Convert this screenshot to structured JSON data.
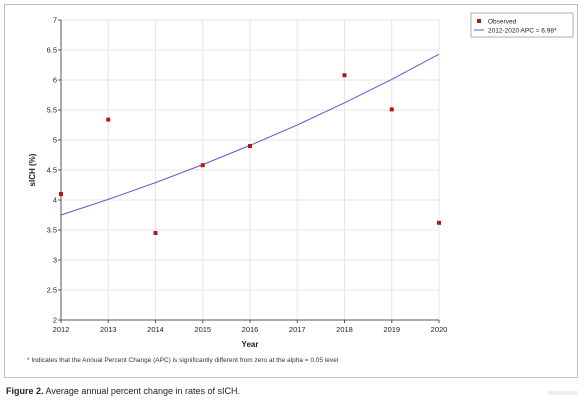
{
  "chart_data": {
    "type": "scatter",
    "title": "",
    "xlabel": "Year",
    "ylabel": "sICH (%)",
    "xlim": [
      2012,
      2020
    ],
    "ylim": [
      2,
      7
    ],
    "xticks": [
      "2012",
      "2013",
      "2014",
      "2015",
      "2016",
      "2017",
      "2018",
      "2019",
      "2020"
    ],
    "yticks": [
      "2",
      "2.5",
      "3",
      "3.5",
      "4",
      "4.5",
      "5",
      "5.5",
      "6",
      "6.5",
      "7"
    ],
    "grid": true,
    "legend_position": "top-right",
    "series": [
      {
        "name": "Observed",
        "kind": "points",
        "color": "#b01818",
        "x": [
          2012,
          2013,
          2014,
          2015,
          2016,
          2018,
          2019,
          2020
        ],
        "values": [
          4.1,
          5.34,
          3.45,
          4.58,
          4.9,
          6.08,
          5.51,
          3.62
        ]
      },
      {
        "name": "2012-2020 APC = 6.98*",
        "kind": "line",
        "color": "#5b5bd6",
        "x": [
          2012,
          2013,
          2014,
          2015,
          2016,
          2017,
          2018,
          2019,
          2020
        ],
        "values": [
          3.75,
          4.01,
          4.29,
          4.59,
          4.91,
          5.25,
          5.62,
          6.01,
          6.43
        ]
      }
    ]
  },
  "footnote": "* Indicates that the Annual Percent Change (APC) is significantly different from zero at the alpha = 0.05 level",
  "caption": {
    "label": "Figure 2.",
    "text": "Average annual percent change in rates of sICH."
  }
}
